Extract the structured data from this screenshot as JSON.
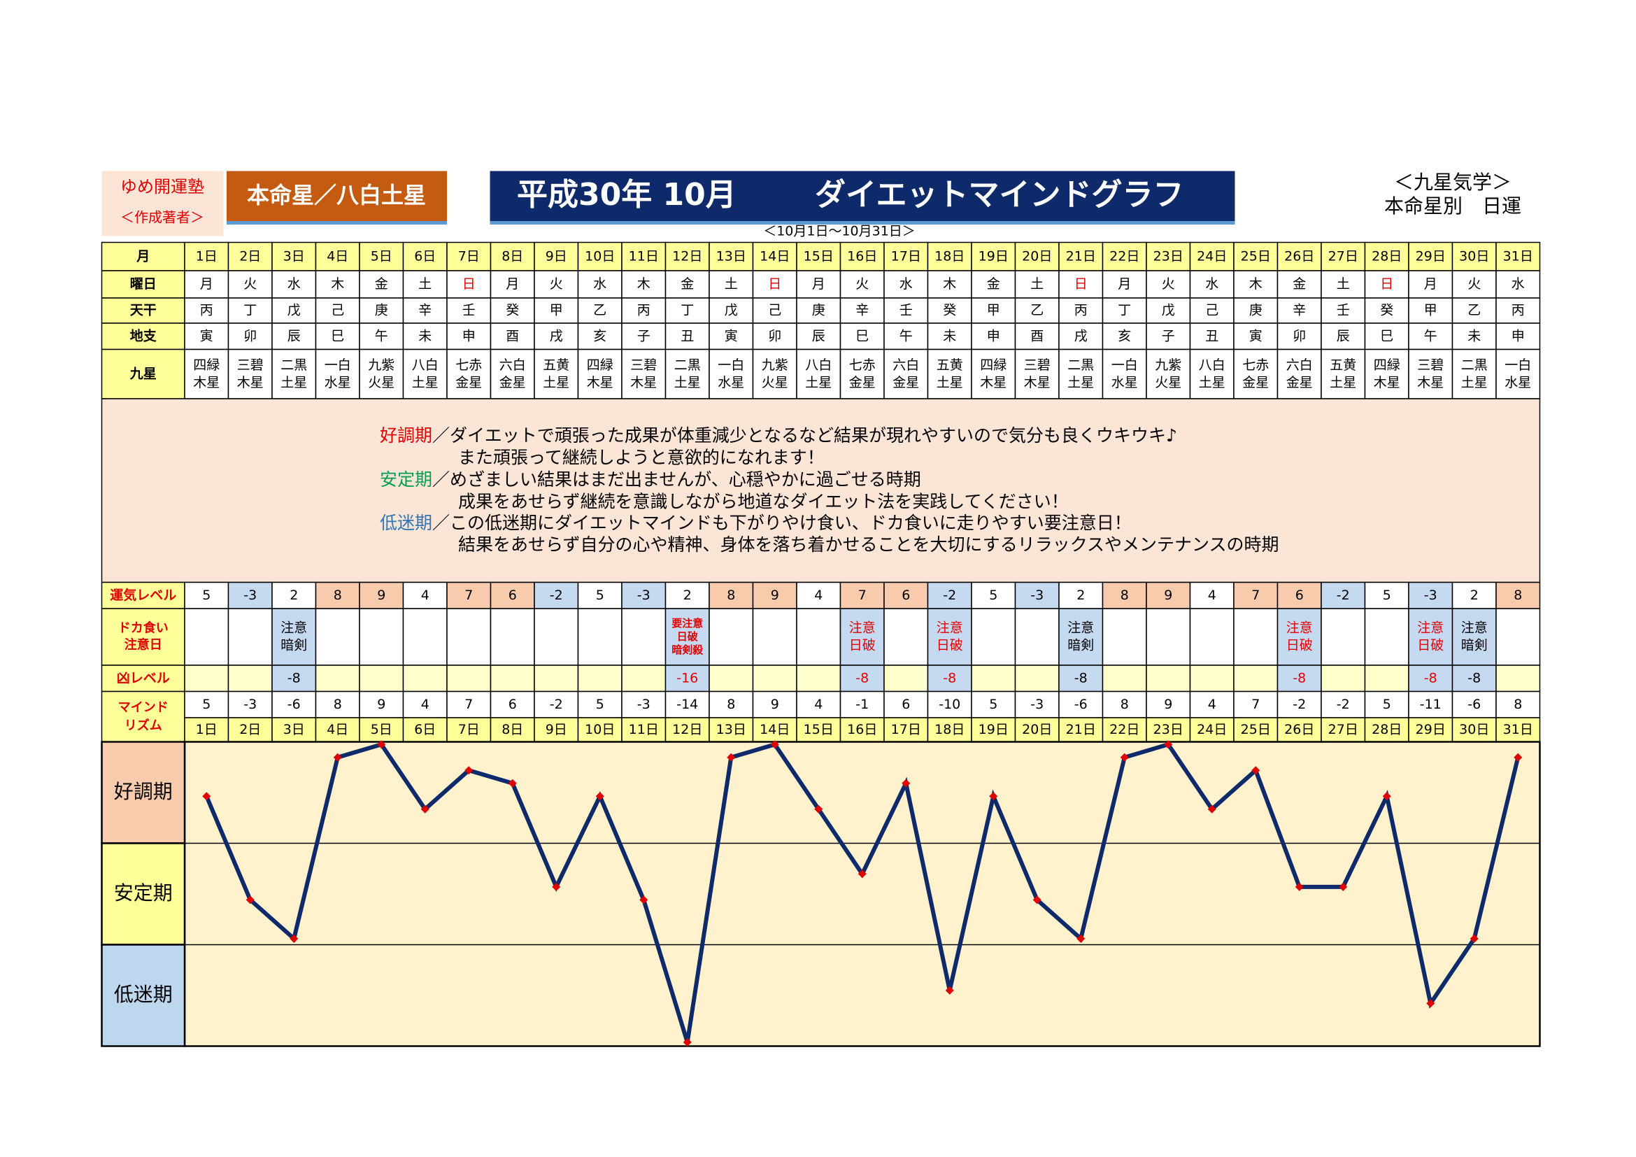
{
  "header": {
    "school": "ゆめ開運塾",
    "author": "＜作成著者＞",
    "honmei": "本命星／八白土星",
    "title_date": "平成30年 10月",
    "title": "ダイエットマインドグラフ",
    "range": "＜10月1日～10月31日＞",
    "right_top": "＜九星気学＞",
    "right_bottom": "本命星別　日運"
  },
  "table": {
    "labels": {
      "month": "月",
      "weekday": "曜日",
      "tenkan": "天干",
      "chishi": "地支",
      "kyusei": "九星",
      "unki": "運気レベル",
      "doka": [
        "ドカ食い",
        "注意日"
      ],
      "kyou": "凶レベル",
      "mind": [
        "マインド",
        "リズム"
      ]
    },
    "days": [
      "1日",
      "2日",
      "3日",
      "4日",
      "5日",
      "6日",
      "7日",
      "8日",
      "9日",
      "10日",
      "11日",
      "12日",
      "13日",
      "14日",
      "15日",
      "16日",
      "17日",
      "18日",
      "19日",
      "20日",
      "21日",
      "22日",
      "23日",
      "24日",
      "25日",
      "26日",
      "27日",
      "28日",
      "29日",
      "30日",
      "31日"
    ],
    "weekday": [
      "月",
      "火",
      "水",
      "木",
      "金",
      "土",
      "日",
      "月",
      "火",
      "水",
      "木",
      "金",
      "土",
      "日",
      "月",
      "火",
      "水",
      "木",
      "金",
      "土",
      "日",
      "月",
      "火",
      "水",
      "木",
      "金",
      "土",
      "日",
      "月",
      "火",
      "水"
    ],
    "tenkan": [
      "丙",
      "丁",
      "戊",
      "己",
      "庚",
      "辛",
      "壬",
      "癸",
      "甲",
      "乙",
      "丙",
      "丁",
      "戊",
      "己",
      "庚",
      "辛",
      "壬",
      "癸",
      "甲",
      "乙",
      "丙",
      "丁",
      "戊",
      "己",
      "庚",
      "辛",
      "壬",
      "癸",
      "甲",
      "乙",
      "丙"
    ],
    "chishi": [
      "寅",
      "卯",
      "辰",
      "巳",
      "午",
      "未",
      "申",
      "酉",
      "戌",
      "亥",
      "子",
      "丑",
      "寅",
      "卯",
      "辰",
      "巳",
      "午",
      "未",
      "申",
      "酉",
      "戌",
      "亥",
      "子",
      "丑",
      "寅",
      "卯",
      "辰",
      "巳",
      "午",
      "未",
      "申"
    ],
    "kyusei": [
      [
        "四緑",
        "木星"
      ],
      [
        "三碧",
        "木星"
      ],
      [
        "二黒",
        "土星"
      ],
      [
        "一白",
        "水星"
      ],
      [
        "九紫",
        "火星"
      ],
      [
        "八白",
        "土星"
      ],
      [
        "七赤",
        "金星"
      ],
      [
        "六白",
        "金星"
      ],
      [
        "五黄",
        "土星"
      ],
      [
        "四緑",
        "木星"
      ],
      [
        "三碧",
        "木星"
      ],
      [
        "二黒",
        "土星"
      ],
      [
        "一白",
        "水星"
      ],
      [
        "九紫",
        "火星"
      ],
      [
        "八白",
        "土星"
      ],
      [
        "七赤",
        "金星"
      ],
      [
        "六白",
        "金星"
      ],
      [
        "五黄",
        "土星"
      ],
      [
        "四緑",
        "木星"
      ],
      [
        "三碧",
        "木星"
      ],
      [
        "二黒",
        "土星"
      ],
      [
        "一白",
        "水星"
      ],
      [
        "九紫",
        "火星"
      ],
      [
        "八白",
        "土星"
      ],
      [
        "七赤",
        "金星"
      ],
      [
        "六白",
        "金星"
      ],
      [
        "五黄",
        "土星"
      ],
      [
        "四緑",
        "木星"
      ],
      [
        "三碧",
        "木星"
      ],
      [
        "二黒",
        "土星"
      ],
      [
        "一白",
        "水星"
      ]
    ],
    "unki": [
      5,
      -3,
      2,
      8,
      9,
      4,
      7,
      6,
      -2,
      5,
      -3,
      2,
      8,
      9,
      4,
      7,
      6,
      -2,
      5,
      -3,
      2,
      8,
      9,
      4,
      7,
      6,
      -2,
      5,
      -3,
      2,
      8
    ],
    "doka": [
      null,
      null,
      [
        "注意",
        "暗剣"
      ],
      null,
      null,
      null,
      null,
      null,
      null,
      null,
      null,
      [
        "要注意",
        "日破",
        "暗剣殺"
      ],
      null,
      null,
      null,
      [
        "注意",
        "日破"
      ],
      null,
      [
        "注意",
        "日破"
      ],
      null,
      null,
      [
        "注意",
        "暗剣"
      ],
      null,
      null,
      null,
      null,
      [
        "注意",
        "日破"
      ],
      null,
      null,
      [
        "注意",
        "日破"
      ],
      [
        "注意",
        "暗剣"
      ],
      null
    ],
    "kyou": [
      null,
      null,
      -8,
      null,
      null,
      null,
      null,
      null,
      null,
      null,
      null,
      -16,
      null,
      null,
      null,
      -8,
      null,
      -8,
      null,
      null,
      -8,
      null,
      null,
      null,
      null,
      -8,
      null,
      null,
      -8,
      -8,
      null
    ],
    "mind": [
      5,
      -3,
      -6,
      8,
      9,
      4,
      7,
      6,
      -2,
      5,
      -3,
      -14,
      8,
      9,
      4,
      -1,
      6,
      -10,
      5,
      -3,
      -6,
      8,
      9,
      4,
      7,
      -2,
      -2,
      5,
      -11,
      -6,
      8
    ]
  },
  "legend": [
    {
      "term": "好調期",
      "text": "／ダイエットで頑張った成果が体重減少となるなど結果が現れやすいので気分も良くウキウキ♪"
    },
    {
      "text": "また頑張って継続しようと意欲的になれます！"
    },
    {
      "term": "安定期",
      "text": "／めざましい結果はまだ出ませんが、心穏やかに過ごせる時期"
    },
    {
      "text": "成果をあせらず継続を意識しながら地道なダイエット法を実践してください！"
    },
    {
      "term": "低迷期",
      "text": "／この低迷期にダイエットマインドも下がりやけ食い、ドカ食いに走りやすい要注意日！"
    },
    {
      "text": "結果をあせらず自分の心や精神、身体を落ち着かせることを大切にするリラックスやメンテナンスの時期"
    }
  ],
  "chart": {
    "zones": [
      "好調期",
      "安定期",
      "低迷期"
    ],
    "ylim": [
      -14.3,
      9.2
    ]
  }
}
